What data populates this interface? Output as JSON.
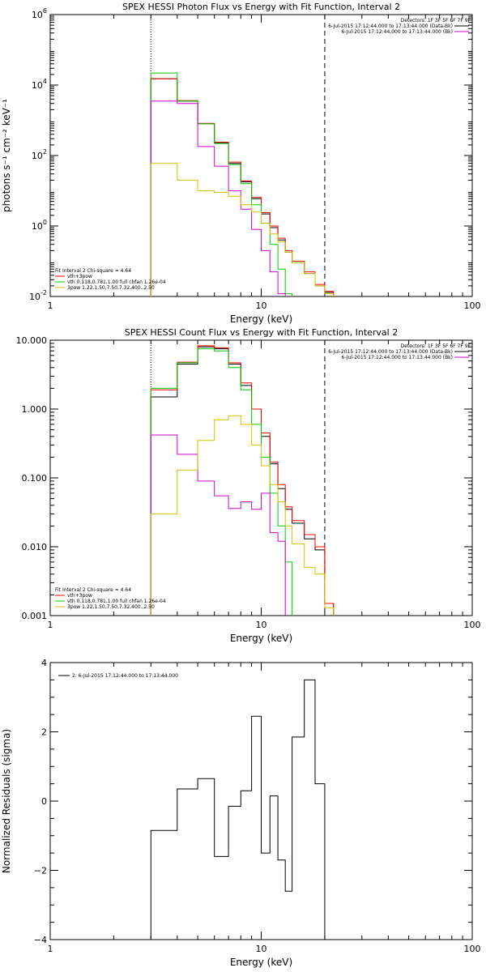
{
  "chart_data": [
    {
      "id": "photon",
      "type": "line",
      "title": "SPEX HESSI Photon Flux vs Energy with Fit Function, Interval 2",
      "xlabel": "Energy (keV)",
      "ylabel": "photons s⁻¹ cm⁻² keV⁻¹",
      "xscale": "log",
      "yscale": "log",
      "xlim": [
        1,
        100
      ],
      "ylim": [
        0.01,
        1000000
      ],
      "x_ticks": [
        {
          "v": 1,
          "label": "1"
        },
        {
          "v": 10,
          "label": "10"
        },
        {
          "v": 100,
          "label": "100"
        }
      ],
      "y_ticks": [
        {
          "v": 0.01,
          "base": "10",
          "exp": "-2"
        },
        {
          "v": 1,
          "base": "10",
          "exp": "0"
        },
        {
          "v": 100,
          "base": "10",
          "exp": "2"
        },
        {
          "v": 10000,
          "base": "10",
          "exp": "4"
        },
        {
          "v": 1000000,
          "base": "10",
          "exp": "6"
        }
      ],
      "vlines": [
        {
          "x": 3,
          "style": "dotted"
        },
        {
          "x": 20,
          "style": "dashed"
        }
      ],
      "legend_tr": {
        "line0": "Detectors: 1F 3F 5F 6F 7F 9F",
        "entries": [
          {
            "text": "6-Jul-2015 17:12:44.000 to 17:13:44.000 (Data-Bk)",
            "color": "#000000"
          },
          {
            "text": "6-Jul-2015 17:12:44.000 to 17:13:44.000 (Bk)",
            "color": "#d000d0"
          }
        ]
      },
      "legend_bl": {
        "line0": "Fit Interval 2   Chi-square = 4.64",
        "entries": [
          {
            "text": "vth+3pow",
            "color": "#ff0000"
          },
          {
            "text": "vth 0.118,0.781,1.00  full chfan 1.26e-04",
            "color": "#00cc00"
          },
          {
            "text": "3pow 1.22,1.50,7.50,7.32,400.,2.50",
            "color": "#d4c000"
          }
        ]
      },
      "edges": [
        3,
        4,
        5,
        6,
        7,
        8,
        9,
        10,
        11,
        12,
        13,
        14,
        16,
        18,
        20,
        22
      ],
      "series": [
        {
          "color": "#000000",
          "values": [
            15000,
            3500,
            800,
            230,
            60,
            18,
            6,
            2.2,
            0.9,
            0.4,
            0.18,
            0.09,
            0.045,
            0.02,
            0.013
          ]
        },
        {
          "color": "#ff0000",
          "values": [
            15000,
            3600,
            820,
            240,
            65,
            19,
            6.5,
            2.4,
            1.0,
            0.45,
            0.2,
            0.1,
            0.05,
            0.022,
            0.014
          ]
        },
        {
          "color": "#00cc00",
          "values": [
            22000,
            3500,
            800,
            220,
            55,
            16,
            4,
            1.2,
            0.3,
            0.06,
            0.012,
            null,
            null,
            null,
            null
          ]
        },
        {
          "color": "#d000d0",
          "values": [
            3500,
            3000,
            180,
            50,
            10,
            3,
            0.8,
            0.2,
            0.05,
            0.012,
            null,
            null,
            null,
            null,
            null
          ]
        },
        {
          "color": "#d4c000",
          "values": [
            60,
            20,
            10,
            9,
            7,
            4,
            2.5,
            1.2,
            0.6,
            0.35,
            0.18,
            0.09,
            0.045,
            0.02,
            0.012
          ]
        }
      ]
    },
    {
      "id": "count",
      "type": "line",
      "title": "SPEX HESSI Count Flux vs Energy with Fit Function, Interval 2",
      "xlabel": "Energy (keV)",
      "ylabel": "",
      "xscale": "log",
      "yscale": "log",
      "xlim": [
        1,
        100
      ],
      "ylim": [
        0.001,
        10
      ],
      "x_ticks": [
        {
          "v": 1,
          "label": "1"
        },
        {
          "v": 10,
          "label": "10"
        },
        {
          "v": 100,
          "label": "100"
        }
      ],
      "y_ticks": [
        {
          "v": 0.001,
          "label": "0.001"
        },
        {
          "v": 0.01,
          "label": "0.010"
        },
        {
          "v": 0.1,
          "label": "0.100"
        },
        {
          "v": 1,
          "label": "1.000"
        },
        {
          "v": 10,
          "label": "10.000"
        }
      ],
      "vlines": [
        {
          "x": 3,
          "style": "dotted"
        },
        {
          "x": 20,
          "style": "dashed"
        }
      ],
      "legend_tr": {
        "line0": "Detectors: 1F 3F 5F 6F 7F 9F",
        "entries": [
          {
            "text": "6-Jul-2015 17:12:44.000 to 17:13:44.000 (Data-Bk)",
            "color": "#000000"
          },
          {
            "text": "6-Jul-2015 17:12:44.000 to 17:13:44.000 (Bk)",
            "color": "#d000d0"
          }
        ]
      },
      "legend_bl": {
        "line0": "Fit Interval 2   Chi-square = 4.64",
        "entries": [
          {
            "text": "vth+3pow",
            "color": "#ff0000"
          },
          {
            "text": "vth 0.118,0.781,1.00  full chfan 1.26e-04",
            "color": "#00cc00"
          },
          {
            "text": "3pow 1.22,1.50,7.50,7.32,400.,2.50",
            "color": "#d4c000"
          }
        ]
      },
      "edges": [
        3,
        4,
        5,
        6,
        7,
        8,
        9,
        10,
        11,
        12,
        13,
        14,
        16,
        18,
        20,
        22
      ],
      "series": [
        {
          "color": "#000000",
          "values": [
            1.5,
            4.5,
            8.0,
            7.5,
            4.5,
            2.2,
            1.0,
            0.4,
            0.16,
            0.07,
            0.035,
            0.022,
            0.013,
            0.009,
            0.0015
          ]
        },
        {
          "color": "#ff0000",
          "values": [
            1.9,
            4.8,
            8.3,
            7.8,
            4.7,
            2.4,
            1.0,
            0.45,
            0.17,
            0.08,
            0.038,
            0.024,
            0.015,
            0.01,
            0.0015
          ]
        },
        {
          "color": "#00cc00",
          "values": [
            2.0,
            4.7,
            7.5,
            7.0,
            4.0,
            1.9,
            0.6,
            0.2,
            0.06,
            0.02,
            0.006,
            null,
            null,
            null,
            null
          ]
        },
        {
          "color": "#d000d0",
          "values": [
            0.42,
            0.22,
            0.09,
            0.055,
            0.036,
            0.045,
            0.035,
            0.06,
            0.016,
            0.012,
            null,
            null,
            null,
            null,
            null
          ]
        },
        {
          "color": "#d4c000",
          "values": [
            0.03,
            0.13,
            0.35,
            0.7,
            0.8,
            0.6,
            0.3,
            0.15,
            0.08,
            0.045,
            0.02,
            0.011,
            0.005,
            0.004,
            0.0013
          ]
        }
      ]
    },
    {
      "id": "resid",
      "type": "line",
      "title": "",
      "xlabel": "Energy (keV)",
      "ylabel": "Normalized Residuals (sigma)",
      "xscale": "log",
      "yscale": "linear",
      "xlim": [
        1,
        100
      ],
      "ylim": [
        -4,
        4
      ],
      "x_ticks": [
        {
          "v": 1,
          "label": "1"
        },
        {
          "v": 10,
          "label": "10"
        },
        {
          "v": 100,
          "label": "100"
        }
      ],
      "y_ticks": [
        {
          "v": -4,
          "label": "−4"
        },
        {
          "v": -2,
          "label": "−2"
        },
        {
          "v": 0,
          "label": "0"
        },
        {
          "v": 2,
          "label": "2"
        },
        {
          "v": 4,
          "label": "4"
        }
      ],
      "vlines": [],
      "legend_tl": {
        "entries": [
          {
            "text": "2.  6-Jul-2015 17:12:44.000 to 17:13:44.000",
            "color": "#000000"
          }
        ]
      },
      "edges": [
        3,
        4,
        5,
        6,
        7,
        8,
        9,
        10,
        11,
        12,
        13,
        14,
        16,
        18,
        20
      ],
      "series": [
        {
          "color": "#000000",
          "values": [
            -0.85,
            0.35,
            0.65,
            -1.6,
            -0.15,
            0.3,
            2.45,
            -1.5,
            0.15,
            -1.7,
            -2.6,
            1.85,
            3.5,
            0.5
          ]
        }
      ]
    }
  ]
}
